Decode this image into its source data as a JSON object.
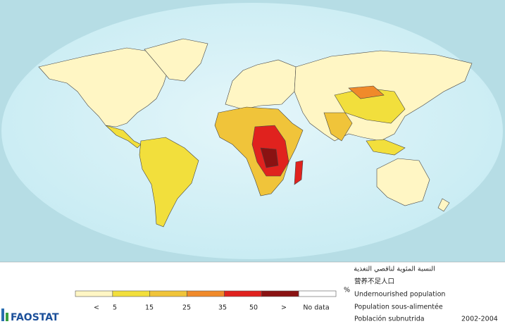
{
  "legend": {
    "title_ar": "النسبة المئوية لناقصي التغذية",
    "title_zh": "营养不足人口",
    "title_en": "Undernourished population",
    "title_fr": "Population sous-alimentée",
    "title_es": "Población subnutrida",
    "unit": "%",
    "period": "2002-2004",
    "labels": [
      "<",
      "5",
      "15",
      "25",
      "35",
      "50",
      ">",
      "No data"
    ],
    "colors": [
      "#fff6c4",
      "#f2df3c",
      "#f0c43a",
      "#f08a2a",
      "#e0221e",
      "#8a1212",
      "#ffffff"
    ]
  },
  "logo": "FAOSTAT"
}
